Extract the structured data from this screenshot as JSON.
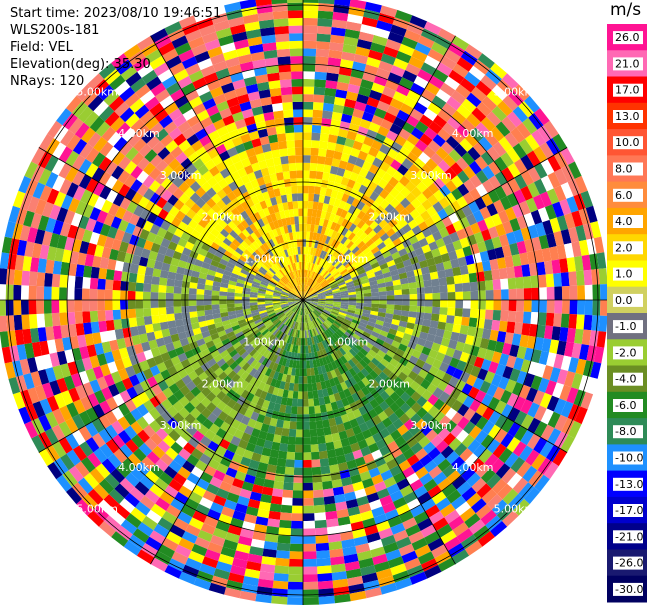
{
  "chart_data": {
    "type": "heatmap",
    "subtype": "polar-ppi",
    "title_lines": {
      "start_time": "Start time: 2023/08/10 19:46:51",
      "instrument": "WLS200s-181",
      "field": "Field: VEL",
      "elevation": "Elevation(deg): 35.30",
      "nrays": "NRays: 120"
    },
    "units": "m/s",
    "range_rings_km": [
      "1.00km",
      "2.00km",
      "3.00km",
      "4.00km",
      "5.00km"
    ],
    "colorbar": {
      "labels": [
        "26.0",
        "21.0",
        "17.0",
        "13.0",
        "10.0",
        "8.0",
        "6.0",
        "4.0",
        "2.0",
        "1.0",
        "0.0",
        "-1.0",
        "-2.0",
        "-4.0",
        "-6.0",
        "-8.0",
        "-10.0",
        "-13.0",
        "-17.0",
        "-21.0",
        "-26.0",
        "-30.0"
      ],
      "colors": [
        "#ff1493",
        "#ff69b4",
        "#ff0000",
        "#ff3300",
        "#ff5533",
        "#ff7755",
        "#ff8c3c",
        "#ffa500",
        "#ffd700",
        "#ffff00",
        "#d0d060",
        "#707080",
        "#9acd32",
        "#6b8e23",
        "#228b22",
        "#2e8b57",
        "#1e90ff",
        "#0000ff",
        "#0000cd",
        "#00008b",
        "#191970",
        "#000060"
      ]
    },
    "rays": 120,
    "gates": 40,
    "pattern": "approaching (negative, green) velocities to the south-east, receding (positive, yellow/orange) to the north, near-zero gray band east-west, noisy multi-color outer ranges"
  }
}
